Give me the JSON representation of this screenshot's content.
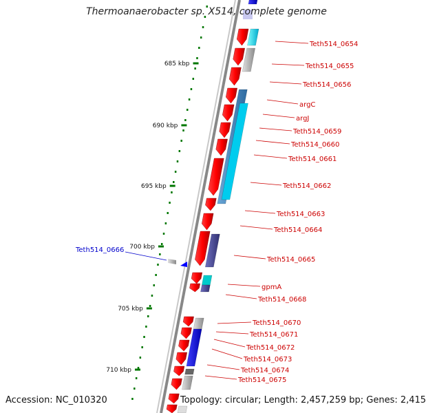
{
  "title": "Thermoanaerobacter sp. X514, complete genome",
  "accession": "Accession: NC_010320",
  "topology": "Topology: circular; Length: 2,457,259 bp; Genes: 2,415",
  "scale_labels": [
    "685 kbp",
    "690 kbp",
    "695 kbp",
    "700 kbp",
    "705 kbp",
    "710 kbp"
  ],
  "gene_labels": [
    "Teth514_0654",
    "Teth514_0655",
    "Teth514_0656",
    "argC",
    "argJ",
    "Teth514_0659",
    "Teth514_0660",
    "Teth514_0661",
    "Teth514_0662",
    "Teth514_0663",
    "Teth514_0664",
    "Teth514_0665",
    "gpmA",
    "Teth514_0668",
    "Teth514_0670",
    "Teth514_0671",
    "Teth514_0672",
    "Teth514_0673",
    "Teth514_0674",
    "Teth514_0675"
  ],
  "reverse_gene_label": "Teth514_0666",
  "colors": {
    "forward_gene": "#ff0000",
    "reverse_gene": "#0000ff",
    "label_forward": "#cc0000",
    "label_reverse": "#0000cc",
    "tick": "#007700",
    "backbone": "#888888"
  }
}
